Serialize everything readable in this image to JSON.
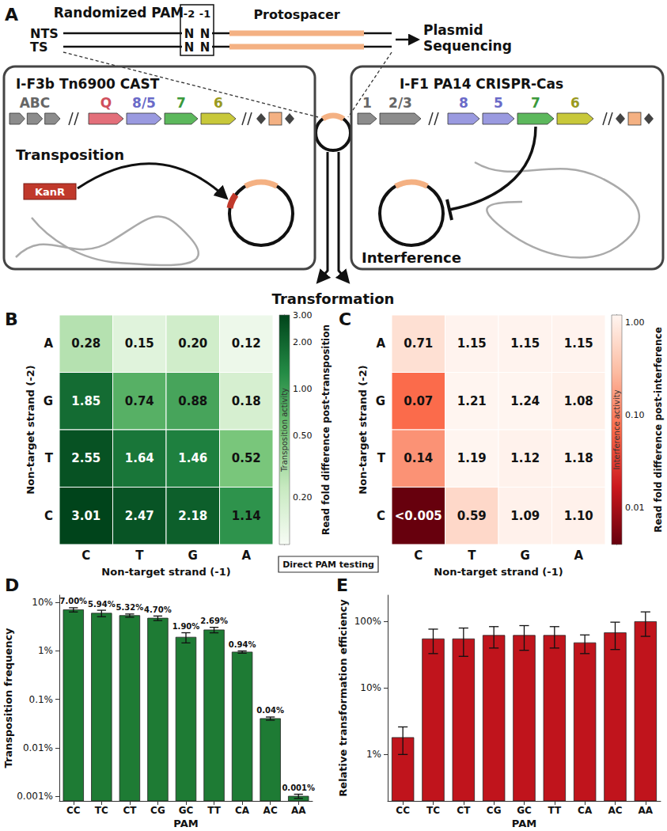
{
  "diagram": {
    "label": "A",
    "pam_title": "Randomized PAM",
    "pam_positions": [
      "-2",
      "-1"
    ],
    "strands": [
      {
        "name": "NTS",
        "pam": [
          "N",
          "N"
        ]
      },
      {
        "name": "TS",
        "pam": [
          "N",
          "N"
        ]
      }
    ],
    "protospacer": "Protospacer",
    "output": [
      "Plasmid",
      "Sequencing"
    ],
    "systems": [
      {
        "title": "I-F3b Tn6900 CAST",
        "genes": [
          "ABC",
          "Q",
          "8/5",
          "7",
          "6"
        ],
        "process": "Transposition",
        "cargo": "KanR"
      },
      {
        "title": "I-F1 PA14 CRISPR-Cas",
        "genes": [
          "1",
          "2/3",
          "8",
          "5",
          "7",
          "6"
        ],
        "process": "Interference"
      }
    ],
    "delivery": "Transformation"
  },
  "annotation": "Direct PAM testing",
  "chart_data": [
    {
      "label": "B",
      "type": "heatmap",
      "x_categories": [
        "C",
        "T",
        "G",
        "A"
      ],
      "y_categories": [
        "A",
        "G",
        "T",
        "C"
      ],
      "xlabel": "Non-target strand (-1)",
      "ylabel": "Non-target strand (-2)",
      "values": [
        [
          0.28,
          0.15,
          0.2,
          0.12
        ],
        [
          1.85,
          0.74,
          0.88,
          0.18
        ],
        [
          2.55,
          1.64,
          1.46,
          0.52
        ],
        [
          3.01,
          2.47,
          2.18,
          1.14
        ]
      ],
      "value_labels": [
        [
          "0.28",
          "0.15",
          "0.20",
          "0.12"
        ],
        [
          "1.85",
          "0.74",
          "0.88",
          "0.18"
        ],
        [
          "2.55",
          "1.64",
          "1.46",
          "0.52"
        ],
        [
          "3.01",
          "2.47",
          "2.18",
          "1.14"
        ]
      ],
      "data_labels": true,
      "colorbar": {
        "title": "Read fold difference post-transposition",
        "annotation": "Transposition activity",
        "log": true,
        "range": [
          0.1,
          3.0
        ],
        "ticks": [
          {
            "value": 0.2,
            "label": "0.20"
          },
          {
            "value": 0.5,
            "label": "0.50"
          },
          {
            "value": 1,
            "label": "1.00"
          },
          {
            "value": 2,
            "label": "2.00"
          },
          {
            "value": 3,
            "label": "3.00"
          }
        ],
        "colors": [
          "#f7fcf5",
          "#c7e9c0",
          "#74c476",
          "#238b45",
          "#00441b"
        ]
      }
    },
    {
      "label": "C",
      "type": "heatmap",
      "x_categories": [
        "C",
        "T",
        "G",
        "A"
      ],
      "y_categories": [
        "A",
        "G",
        "T",
        "C"
      ],
      "xlabel": "Non-target strand (-1)",
      "ylabel": "Non-target strand (-2)",
      "values": [
        [
          0.71,
          1.15,
          1.15,
          1.15
        ],
        [
          0.07,
          1.21,
          1.24,
          1.08
        ],
        [
          0.14,
          1.19,
          1.12,
          1.18
        ],
        [
          0.004,
          0.59,
          1.09,
          1.1
        ]
      ],
      "value_labels": [
        [
          "0.71",
          "1.15",
          "1.15",
          "1.15"
        ],
        [
          "0.07",
          "1.21",
          "1.24",
          "1.08"
        ],
        [
          "0.14",
          "1.19",
          "1.12",
          "1.18"
        ],
        [
          "<0.005",
          "0.59",
          "1.09",
          "1.10"
        ]
      ],
      "data_labels": true,
      "colorbar": {
        "title": "Read fold difference post-interference",
        "annotation": "Interference activity",
        "log": true,
        "range": [
          0.004,
          1.2
        ],
        "ticks": [
          {
            "value": 0.01,
            "label": "0.01"
          },
          {
            "value": 0.1,
            "label": "0.10"
          },
          {
            "value": 1,
            "label": "1.00"
          }
        ],
        "colors": [
          "#67000d",
          "#cb181d",
          "#fb6a4a",
          "#fcbba1",
          "#fff5f0"
        ]
      }
    },
    {
      "label": "D",
      "type": "bar",
      "categories": [
        "CC",
        "TC",
        "CT",
        "CG",
        "GC",
        "TT",
        "CA",
        "AC",
        "AA"
      ],
      "values": [
        7.0,
        5.94,
        5.32,
        4.7,
        1.9,
        2.69,
        0.94,
        0.04,
        0.001
      ],
      "errors": [
        0.7,
        0.9,
        0.4,
        0.5,
        0.45,
        0.35,
        0.05,
        0.003,
        0.0001
      ],
      "value_labels": [
        "7.00%",
        "5.94%",
        "5.32%",
        "4.70%",
        "1.90%",
        "2.69%",
        "0.94%",
        "0.04%",
        "0.001%"
      ],
      "data_labels": true,
      "xlabel": "PAM",
      "ylabel": "Transposition frequency",
      "log": "y",
      "ylim": [
        0.0008,
        14
      ],
      "yticks": [
        {
          "value": 0.001,
          "label": "0.001%"
        },
        {
          "value": 0.01,
          "label": "0.01%"
        },
        {
          "value": 0.1,
          "label": "0.1%"
        },
        {
          "value": 1,
          "label": "1%"
        },
        {
          "value": 10,
          "label": "10%"
        }
      ],
      "color": "#1e7b34"
    },
    {
      "label": "E",
      "type": "bar",
      "categories": [
        "CC",
        "TC",
        "CT",
        "CG",
        "GC",
        "TT",
        "CA",
        "AC",
        "AA"
      ],
      "values": [
        1.8,
        55,
        55,
        62,
        62,
        62,
        48,
        68,
        100
      ],
      "errors": [
        0.8,
        22,
        25,
        22,
        25,
        22,
        15,
        30,
        40
      ],
      "xlabel": "PAM",
      "ylabel": "Relative transformation efficiency",
      "log": "y",
      "ylim": [
        0.2,
        250
      ],
      "yticks": [
        {
          "value": 1,
          "label": "1%"
        },
        {
          "value": 10,
          "label": "10%"
        },
        {
          "value": 100,
          "label": "100%"
        }
      ],
      "color": "#c0141c"
    }
  ]
}
